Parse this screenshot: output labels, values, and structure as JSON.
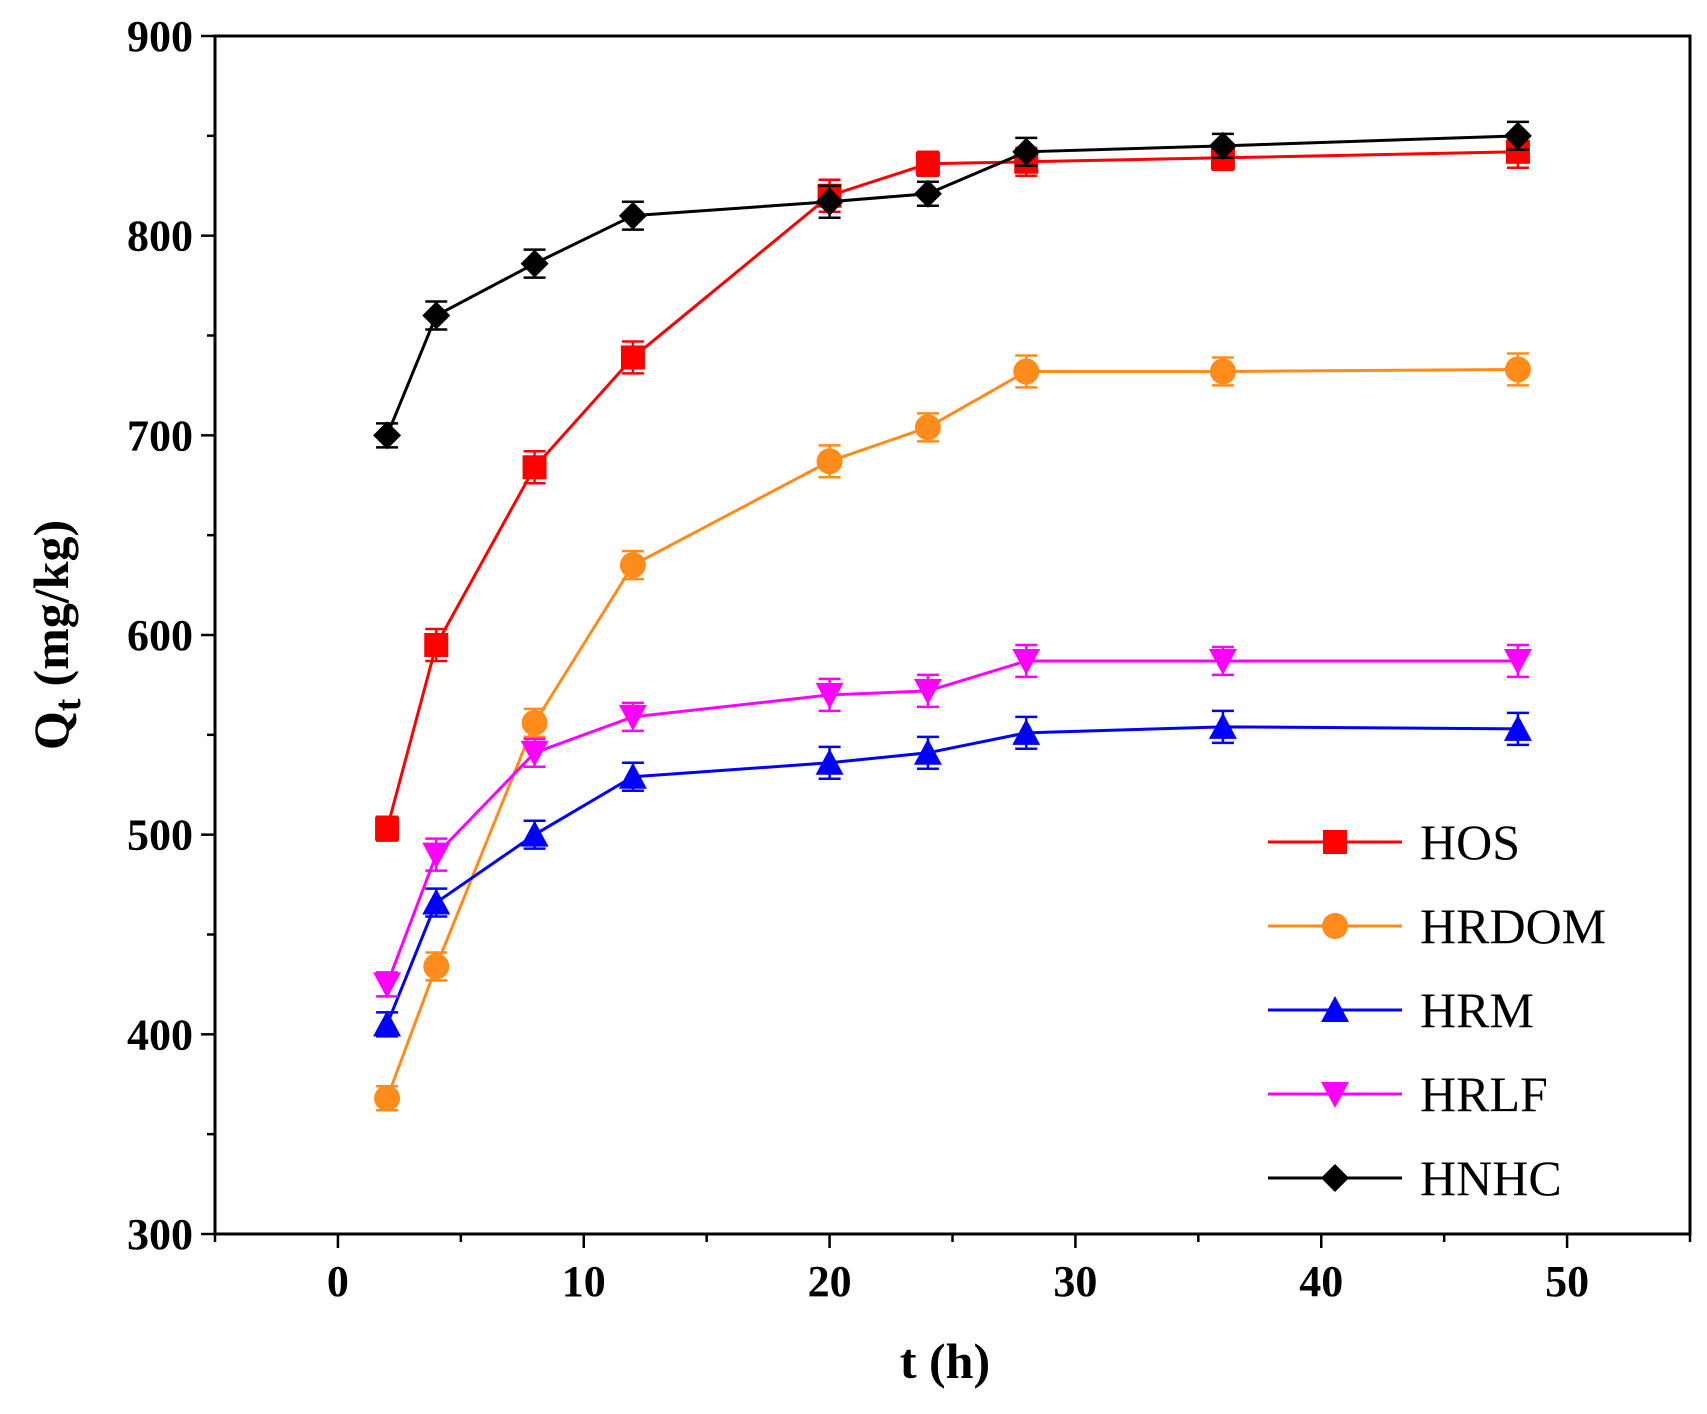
{
  "chart_data": {
    "type": "line",
    "title": "",
    "xlabel": "t (h)",
    "ylabel": "Q",
    "ylabel_subscript": "t",
    "ylabel_unit": "(mg/kg)",
    "xlim": [
      -5,
      55
    ],
    "ylim": [
      300,
      900
    ],
    "x_ticks": [
      0,
      10,
      20,
      30,
      40,
      50
    ],
    "y_ticks": [
      300,
      400,
      500,
      600,
      700,
      800,
      900
    ],
    "grid": false,
    "legend_position": "bottom-right",
    "x": [
      2,
      4,
      8,
      12,
      20,
      24,
      28,
      36,
      48
    ],
    "series": [
      {
        "name": "HOS",
        "color": "#ff0000",
        "marker": "square",
        "values": [
          503,
          595,
          684,
          739,
          820,
          836,
          837,
          839,
          842
        ],
        "errors": [
          6,
          8,
          8,
          8,
          8,
          6,
          7,
          6,
          8
        ]
      },
      {
        "name": "HRDOM",
        "color": "#ff8c1a",
        "marker": "circle",
        "values": [
          368,
          434,
          556,
          635,
          687,
          704,
          732,
          732,
          733
        ],
        "errors": [
          6,
          7,
          7,
          7,
          8,
          7,
          8,
          7,
          8
        ]
      },
      {
        "name": "HRM",
        "color": "#0000ff",
        "marker": "triangle-up",
        "values": [
          405,
          466,
          500,
          529,
          536,
          541,
          551,
          554,
          553
        ],
        "errors": [
          6,
          7,
          7,
          7,
          8,
          8,
          8,
          8,
          8
        ]
      },
      {
        "name": "HRLF",
        "color": "#ff00ff",
        "marker": "triangle-down",
        "values": [
          425,
          490,
          541,
          559,
          570,
          572,
          587,
          587,
          587
        ],
        "errors": [
          6,
          8,
          7,
          7,
          8,
          8,
          8,
          7,
          8
        ]
      },
      {
        "name": "HNHC",
        "color": "#000000",
        "marker": "diamond",
        "values": [
          700,
          760,
          786,
          810,
          817,
          821,
          842,
          845,
          850
        ],
        "errors": [
          6,
          7,
          7,
          7,
          8,
          6,
          7,
          6,
          7
        ]
      }
    ]
  }
}
